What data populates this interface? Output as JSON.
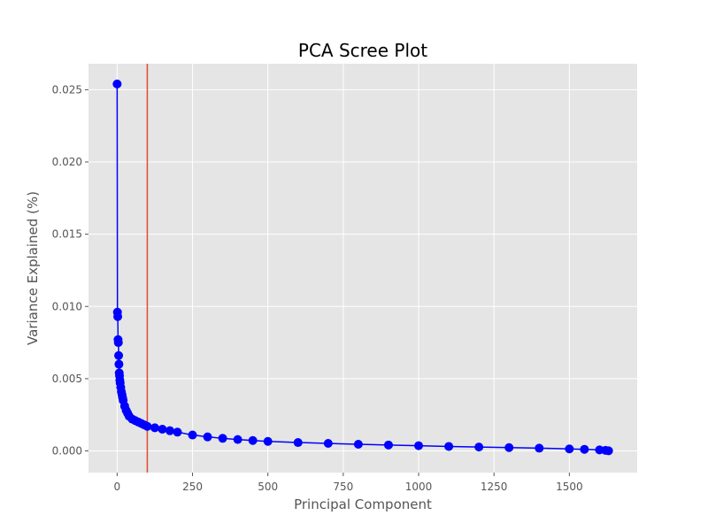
{
  "chart_data": {
    "type": "line",
    "title": "PCA Scree Plot",
    "xlabel": "Principal Component",
    "ylabel": "Variance Explained (%)",
    "xlim": [
      -95,
      1725
    ],
    "ylim": [
      -0.0015,
      0.0268
    ],
    "xticks": [
      0,
      250,
      500,
      750,
      1000,
      1250,
      1500
    ],
    "yticks": [
      0.0,
      0.005,
      0.01,
      0.015,
      0.02,
      0.025
    ],
    "xtick_labels": [
      "0",
      "250",
      "500",
      "750",
      "1000",
      "1250",
      "1500"
    ],
    "ytick_labels": [
      "0.000",
      "0.005",
      "0.010",
      "0.015",
      "0.020",
      "0.025"
    ],
    "grid": true,
    "background": "#e5e5e5",
    "grid_color": "#ffffff",
    "series": [
      {
        "color": "#0000ff",
        "marker": "circle",
        "x": [
          0,
          1,
          2,
          3,
          4,
          5,
          6,
          7,
          8,
          9,
          10,
          12,
          14,
          16,
          18,
          20,
          25,
          30,
          35,
          40,
          50,
          60,
          70,
          80,
          90,
          100,
          125,
          150,
          175,
          200,
          250,
          300,
          350,
          400,
          450,
          500,
          600,
          700,
          800,
          900,
          1000,
          1100,
          1200,
          1300,
          1400,
          1500,
          1550,
          1600,
          1620,
          1630
        ],
        "y": [
          0.0254,
          0.0096,
          0.0093,
          0.0077,
          0.0075,
          0.0066,
          0.006,
          0.0054,
          0.0052,
          0.0049,
          0.0047,
          0.0044,
          0.0041,
          0.0039,
          0.0037,
          0.0035,
          0.0031,
          0.0028,
          0.0026,
          0.0024,
          0.0022,
          0.0021,
          0.002,
          0.0019,
          0.0018,
          0.0017,
          0.0016,
          0.0015,
          0.0014,
          0.0013,
          0.0011,
          0.00097,
          0.00087,
          0.00079,
          0.00072,
          0.00066,
          0.00058,
          0.00052,
          0.00046,
          0.00041,
          0.00036,
          0.00031,
          0.00027,
          0.00023,
          0.00019,
          0.00014,
          0.00011,
          7e-05,
          4e-05,
          1e-05
        ]
      }
    ],
    "vertical_line": {
      "x": 100,
      "color": "#e24a33"
    }
  }
}
